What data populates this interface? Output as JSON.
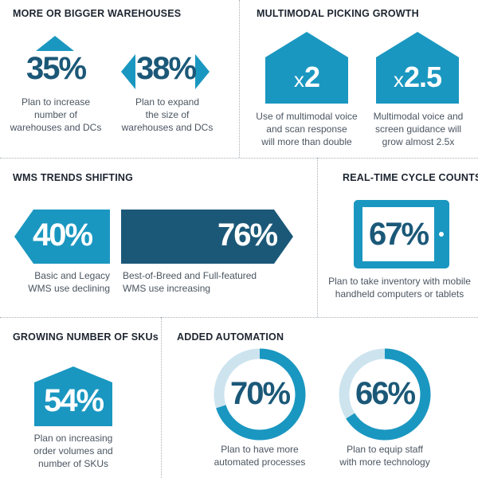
{
  "colors": {
    "teal": "#1a97c0",
    "navy": "#1b5878",
    "light": "#cde4ef",
    "text": "#4a5560",
    "heading": "#1d2530"
  },
  "warehouses": {
    "heading": "MORE OR BIGGER WAREHOUSES",
    "increase": {
      "value": "35%",
      "caption": "Plan to increase\nnumber of\nwarehouses and DCs",
      "icon": "up-triangle-icon"
    },
    "expand": {
      "value": "38%",
      "caption": "Plan to expand\nthe size of\nwarehouses and DCs",
      "icon": "left-right-arrows-icon"
    }
  },
  "picking": {
    "heading": "MULTIMODAL PICKING GROWTH",
    "voice": {
      "multiplier_prefix": "x",
      "multiplier": "2",
      "caption": "Use of multimodal voice\nand scan response\nwill more than double",
      "icon": "house-icon"
    },
    "screen": {
      "multiplier_prefix": "x",
      "multiplier": "2.5",
      "caption": "Multimodal voice and\nscreen guidance will\ngrow almost 2.5x",
      "icon": "house-icon"
    }
  },
  "wms": {
    "heading": "WMS TRENDS SHIFTING",
    "declining": {
      "value": "40%",
      "caption": "Basic and Legacy\nWMS use declining",
      "icon": "left-arrow-banner-icon"
    },
    "increasing": {
      "value": "76%",
      "caption": "Best-of-Breed and Full-featured\nWMS use increasing",
      "icon": "right-arrow-banner-icon"
    }
  },
  "cycle": {
    "heading": "REAL-TIME CYCLE COUNTS",
    "value": "67%",
    "caption": "Plan to take inventory with mobile\nhandheld computers or tablets",
    "icon": "tablet-icon"
  },
  "skus": {
    "heading": "GROWING NUMBER OF SKUs",
    "value": "54%",
    "caption": "Plan on increasing\norder volumes and\nnumber of SKUs",
    "icon": "house-icon"
  },
  "automation": {
    "heading": "ADDED AUTOMATION",
    "processes": {
      "value": "70%",
      "percent": 70,
      "caption": "Plan to have more\nautomated processes",
      "icon": "donut-ring-icon"
    },
    "technology": {
      "value": "66%",
      "percent": 66,
      "caption": "Plan to equip staff\nwith more technology",
      "icon": "donut-ring-icon"
    }
  }
}
